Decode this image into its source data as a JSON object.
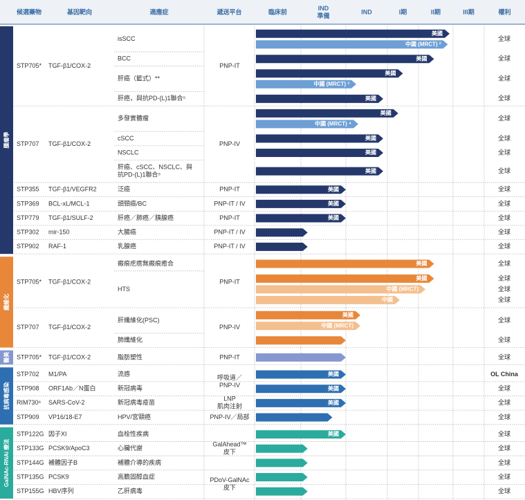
{
  "header": [
    "候選藥物",
    "基因靶向",
    "適應症",
    "遞送平台",
    "臨床前",
    [
      "IND",
      "準備"
    ],
    "IND",
    "I期",
    "II期",
    "III期",
    "權利"
  ],
  "sections": [
    {
      "label": "腫瘤學",
      "color": "#24386b",
      "light_color": "#6d9fd4",
      "groups": [
        {
          "platform": "PNP-IT",
          "drugs": [
            {
              "drug": "STP705*",
              "target": "TGF-β1/COX-2",
              "rows": [
                {
                  "indication": "isSCC",
                  "rights": [
                    "全球"
                  ],
                  "bars": [
                    {
                      "label": "美國",
                      "progress": 4.9,
                      "tone": "dark"
                    },
                    {
                      "label": "中國 (MRCT) ²",
                      "progress": 4.85,
                      "tone": "light"
                    }
                  ]
                },
                {
                  "indication": "BCC",
                  "rights": [
                    "全球"
                  ],
                  "bars": [
                    {
                      "label": "美國",
                      "progress": 4.45,
                      "tone": "dark"
                    }
                  ]
                },
                {
                  "indication": "肝癌（籃式）**",
                  "rights": [
                    "全球"
                  ],
                  "bars": [
                    {
                      "label": "美國",
                      "progress": 3.5,
                      "tone": "dark"
                    },
                    {
                      "label": "中國 (MRCT) ³",
                      "progress": 2.25,
                      "tone": "light"
                    }
                  ]
                },
                {
                  "indication": "肝癌，與抗PD-(L)1聯合⁵",
                  "rights": [
                    "全球"
                  ],
                  "bars": [
                    {
                      "label": "美國",
                      "progress": 2.9,
                      "tone": "dark"
                    }
                  ]
                }
              ]
            }
          ]
        },
        {
          "platform": "PNP-IV",
          "drugs": [
            {
              "drug": "STP707",
              "target": "TGF-β1/COX-2",
              "rows": [
                {
                  "indication": "多發實體瘤",
                  "rights": [
                    "全球"
                  ],
                  "bars": [
                    {
                      "label": "美國",
                      "progress": 3.35,
                      "tone": "dark"
                    },
                    {
                      "label": "中國 (MRCT) ⁴",
                      "progress": 2.3,
                      "tone": "light"
                    }
                  ]
                },
                {
                  "indication": "cSCC",
                  "rights": [
                    "全球"
                  ],
                  "bars": [
                    {
                      "label": "美國",
                      "progress": 2.9,
                      "tone": "dark"
                    }
                  ]
                },
                {
                  "indication": "NSCLC",
                  "rights": [
                    "全球"
                  ],
                  "bars": [
                    {
                      "label": "美國",
                      "progress": 2.9,
                      "tone": "dark"
                    }
                  ]
                },
                {
                  "indication": [
                    "肝癌、cSCC、NSCLC、與",
                    "抗PD-(L)1聯合⁵"
                  ],
                  "rights": [
                    "全球"
                  ],
                  "bars": [
                    {
                      "label": "美國",
                      "progress": 2.9,
                      "tone": "dark"
                    }
                  ]
                }
              ]
            }
          ]
        },
        {
          "platform": "PNP-IT",
          "drugs": [
            {
              "drug": "STP355",
              "target": "TGF-β1/VEGFR2",
              "rows": [
                {
                  "indication": "泛癌",
                  "rights": [
                    "全球"
                  ],
                  "bars": [
                    {
                      "label": "美國",
                      "progress": 2.0,
                      "tone": "dark"
                    }
                  ]
                }
              ]
            }
          ]
        },
        {
          "platform": "PNP-IT / IV",
          "drugs": [
            {
              "drug": "STP369",
              "target": "BCL-xL/MCL-1",
              "rows": [
                {
                  "indication": "頭頸癌/BC",
                  "rights": [
                    "全球"
                  ],
                  "bars": [
                    {
                      "label": "美國",
                      "progress": 2.0,
                      "tone": "dark"
                    }
                  ]
                }
              ]
            }
          ]
        },
        {
          "platform": "PNP-IT",
          "drugs": [
            {
              "drug": "STP779",
              "target": "TGF-β1/SULF-2",
              "rows": [
                {
                  "indication": "肝癌／肺癌／胰腺癌",
                  "rights": [
                    "全球"
                  ],
                  "bars": [
                    {
                      "label": "美國",
                      "progress": 2.0,
                      "tone": "dark"
                    }
                  ]
                }
              ]
            }
          ]
        },
        {
          "platform": "PNP-IT / IV",
          "drugs": [
            {
              "drug": "STP302",
              "target": "mir-150",
              "rows": [
                {
                  "indication": "大腸癌",
                  "rights": [
                    "全球"
                  ],
                  "bars": [
                    {
                      "progress": 1.15,
                      "tone": "dark"
                    }
                  ]
                }
              ]
            }
          ]
        },
        {
          "platform": "PNP-IT / IV",
          "drugs": [
            {
              "drug": "STP902",
              "target": "RAF-1",
              "rows": [
                {
                  "indication": "乳腺癌",
                  "rights": [
                    "全球"
                  ],
                  "bars": [
                    {
                      "progress": 1.15,
                      "tone": "dark"
                    }
                  ]
                }
              ]
            }
          ]
        }
      ]
    },
    {
      "label": "纖維化",
      "color": "#e8873a",
      "light_color": "#f4bf8f",
      "groups": [
        {
          "platform": "PNP-IT",
          "drugs": [
            {
              "drug": "STP705*",
              "target": "TGF-β1/COX-2",
              "rows": [
                {
                  "indication": "瘢痕疙瘩無瘢痕癒合",
                  "rights": [
                    "全球"
                  ],
                  "bars": [
                    {
                      "label": "美國",
                      "progress": 4.45,
                      "tone": "dark"
                    }
                  ]
                },
                {
                  "indication": "HTS",
                  "rights": [
                    "全球",
                    "全球",
                    "全球"
                  ],
                  "bars": [
                    {
                      "label": "美國",
                      "progress": 4.45,
                      "tone": "dark"
                    },
                    {
                      "label": "中國 (MRCT)",
                      "progress": 4.2,
                      "tone": "light"
                    },
                    {
                      "label": "中國",
                      "progress": 3.4,
                      "tone": "light"
                    }
                  ]
                }
              ]
            }
          ]
        },
        {
          "platform": "PNP-IV",
          "drugs": [
            {
              "drug": "STP707",
              "target": "TGF-β1/COX-2",
              "rows": [
                {
                  "indication": "肝纖維化(PSC)",
                  "rights": [
                    "全球"
                  ],
                  "bars": [
                    {
                      "label": "美國",
                      "progress": 2.35,
                      "tone": "dark"
                    },
                    {
                      "label": "中國 (MRCT)",
                      "progress": 2.35,
                      "tone": "light"
                    }
                  ]
                },
                {
                  "indication": "肺纖維化",
                  "rights": [
                    "全球"
                  ],
                  "bars": [
                    {
                      "progress": 2.0,
                      "tone": "dark"
                    }
                  ]
                }
              ]
            }
          ]
        }
      ]
    },
    {
      "label": "醫美",
      "color": "#8797cf",
      "light_color": "#8797cf",
      "groups": [
        {
          "platform": "PNP-IT",
          "drugs": [
            {
              "drug": "STP705*",
              "target": "TGF-β1/COX-2",
              "rows": [
                {
                  "indication": "脂肪塑性",
                  "rights": [
                    "全球"
                  ],
                  "bars": [
                    {
                      "progress": 2.0,
                      "tone": "dark"
                    }
                  ]
                }
              ]
            }
          ]
        }
      ]
    },
    {
      "label": "抗病毒感染",
      "color": "#2e6fb2",
      "light_color": "#6d9fd4",
      "groups": [
        {
          "platform": [
            "呼吸道／",
            "PNP-IV"
          ],
          "drugs": [
            {
              "drug": "STP702",
              "target": "M1/PA",
              "rows": [
                {
                  "indication": "流感",
                  "rights": [
                    "OL China"
                  ],
                  "bars": [
                    {
                      "label": "美國",
                      "progress": 2.0,
                      "tone": "dark"
                    }
                  ]
                }
              ]
            },
            {
              "drug": "STP908",
              "target": "ORF1Ab／N蛋白",
              "rows": [
                {
                  "indication": "新冠病毒",
                  "rights": [
                    "全球"
                  ],
                  "bars": [
                    {
                      "label": "美國",
                      "progress": 2.0,
                      "tone": "dark"
                    }
                  ]
                }
              ]
            }
          ]
        },
        {
          "platform": [
            "LNP",
            "肌肉注射"
          ],
          "drugs": [
            {
              "drug": "RIM730⁶",
              "target": "SARS-CoV-2",
              "rows": [
                {
                  "indication": "新冠病毒疫苗",
                  "rights": [
                    "全球"
                  ],
                  "bars": [
                    {
                      "label": "美國",
                      "progress": 2.0,
                      "tone": "dark"
                    }
                  ]
                }
              ]
            }
          ]
        },
        {
          "platform": "PNP-IV／局部",
          "drugs": [
            {
              "drug": "STP909",
              "target": "VP16/18-E7",
              "rows": [
                {
                  "indication": "HPV/宮頸癌",
                  "rights": [
                    "全球"
                  ],
                  "bars": [
                    {
                      "progress": 1.7,
                      "tone": "dark"
                    }
                  ]
                }
              ]
            }
          ]
        }
      ]
    },
    {
      "label": "GalNAc-RNAi 療法",
      "color": "#2bab9d",
      "light_color": "#7fd0c6",
      "groups": [
        {
          "platform": [
            "GalAhead™",
            "皮下"
          ],
          "drugs": [
            {
              "drug": "STP122G",
              "target": "因子XI",
              "rows": [
                {
                  "indication": "血栓性疾病",
                  "rights": [
                    "全球"
                  ],
                  "bars": [
                    {
                      "label": "美國",
                      "progress": 2.0,
                      "tone": "dark"
                    }
                  ]
                }
              ]
            },
            {
              "drug": "STP133G",
              "target": "PCSK9/ApoC3",
              "rows": [
                {
                  "indication": "心臟代謝",
                  "rights": [
                    "全球"
                  ],
                  "bars": [
                    {
                      "progress": 1.15,
                      "tone": "dark"
                    }
                  ]
                }
              ]
            },
            {
              "drug": "STP144G",
              "target": "補體因子B",
              "rows": [
                {
                  "indication": "補體介導的疾病",
                  "rights": [
                    "全球"
                  ],
                  "bars": [
                    {
                      "progress": 1.15,
                      "tone": "dark"
                    }
                  ]
                }
              ]
            }
          ]
        },
        {
          "platform": [
            "PDoV-GalNAc",
            "皮下"
          ],
          "drugs": [
            {
              "drug": "STP135G",
              "target": "PCSK9",
              "rows": [
                {
                  "indication": "高膽固醇血症",
                  "rights": [
                    "全球"
                  ],
                  "bars": [
                    {
                      "progress": 1.15,
                      "tone": "dark"
                    }
                  ]
                }
              ]
            },
            {
              "drug": "STP155G",
              "target": "HBV序列",
              "rows": [
                {
                  "indication": "乙肝病毒",
                  "rights": [
                    "全球"
                  ],
                  "bars": [
                    {
                      "progress": 1.15,
                      "tone": "dark"
                    }
                  ]
                }
              ]
            }
          ]
        }
      ]
    }
  ]
}
